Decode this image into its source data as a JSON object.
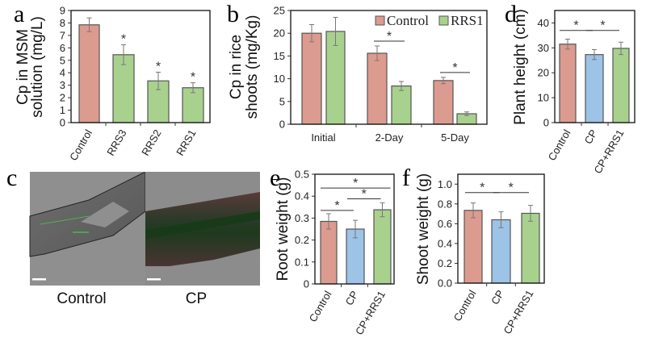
{
  "colors": {
    "control": "#dc9b8f",
    "rrs": "#a9d18e",
    "cp": "#9dc3e6",
    "edge": "#555555"
  },
  "chart_data": [
    {
      "panel": "a",
      "type": "bar",
      "ylabel": [
        "Cp in MSM",
        "solution (mg/L)"
      ],
      "ylim": [
        0,
        9
      ],
      "yticks": [
        0,
        1,
        2,
        3,
        4,
        5,
        6,
        7,
        8,
        9
      ],
      "categories": [
        "Control",
        "RRS3",
        "RRS2",
        "RRS1"
      ],
      "values": [
        7.85,
        5.45,
        3.35,
        2.8
      ],
      "errors": [
        0.55,
        0.8,
        0.7,
        0.4
      ],
      "bar_colors": [
        "control",
        "rrs",
        "rrs",
        "rrs"
      ],
      "stars": [
        1,
        2,
        3
      ],
      "star_label": "*",
      "brackets": []
    },
    {
      "panel": "b",
      "type": "bar",
      "ylabel": [
        "Cp in rice",
        "shoots (mg/Kg)"
      ],
      "ylim": [
        0,
        25
      ],
      "yticks": [
        0,
        5,
        10,
        15,
        20,
        25
      ],
      "categories": [
        "Initial",
        "2-Day",
        "5-Day"
      ],
      "series": [
        {
          "name": "Control",
          "values": [
            20,
            15.6,
            9.6
          ],
          "errors": [
            1.9,
            1.6,
            0.7
          ]
        },
        {
          "name": "RRS1",
          "values": [
            20.4,
            8.4,
            2.3
          ],
          "errors": [
            3.1,
            1.0,
            0.4
          ]
        }
      ],
      "legend": "top-right",
      "brackets": [
        {
          "group": 1,
          "label": "*"
        },
        {
          "group": 2,
          "label": "*"
        }
      ]
    },
    {
      "panel": "d",
      "type": "bar",
      "ylabel": [
        "Plant height (cm)"
      ],
      "ylim": [
        0,
        45
      ],
      "yticks": [
        0,
        10,
        20,
        30,
        40
      ],
      "categories": [
        "Control",
        "CP",
        "CP+RRS1"
      ],
      "values": [
        31.5,
        27.3,
        29.8
      ],
      "errors": [
        2,
        2,
        2.5
      ],
      "bar_colors": [
        "control",
        "cp",
        "rrs"
      ],
      "brackets": [
        {
          "from": 0,
          "to": 1,
          "level": 37,
          "label": "*"
        },
        {
          "from": 1,
          "to": 2,
          "level": 37,
          "label": "*"
        }
      ]
    },
    {
      "panel": "e",
      "type": "bar",
      "ylabel": [
        "Root weight (g)"
      ],
      "ylim": [
        0,
        0.5
      ],
      "yticks": [
        "0",
        "0.1",
        "0.2",
        "0.3",
        "0.4",
        "0.5"
      ],
      "categories": [
        "Control",
        "CP",
        "CP+RRS1"
      ],
      "values": [
        0.285,
        0.25,
        0.338
      ],
      "errors": [
        0.035,
        0.04,
        0.032
      ],
      "bar_colors": [
        "control",
        "cp",
        "rrs"
      ],
      "brackets": [
        {
          "from": 0,
          "to": 1,
          "level": 0.335,
          "label": "*"
        },
        {
          "from": 1,
          "to": 2,
          "level": 0.388,
          "label": "*"
        },
        {
          "from": 0,
          "to": 2,
          "level": 0.437,
          "label": "*"
        }
      ]
    },
    {
      "panel": "f",
      "type": "bar",
      "ylabel": [
        "Shoot weight (g)"
      ],
      "ylim": [
        0,
        1.1
      ],
      "yticks": [
        "0.0",
        "0.2",
        "0.4",
        "0.6",
        "0.8",
        "1.0"
      ],
      "categories": [
        "Control",
        "CP",
        "CP+RRS1"
      ],
      "values": [
        0.735,
        0.64,
        0.705
      ],
      "errors": [
        0.075,
        0.08,
        0.08
      ],
      "bar_colors": [
        "control",
        "cp",
        "rrs"
      ],
      "brackets": [
        {
          "from": 0,
          "to": 1,
          "level": 0.915,
          "label": "*"
        },
        {
          "from": 1,
          "to": 2,
          "level": 0.915,
          "label": "*"
        }
      ]
    }
  ],
  "micrographs": {
    "panel": "c",
    "labels": [
      "Control",
      "CP"
    ]
  }
}
